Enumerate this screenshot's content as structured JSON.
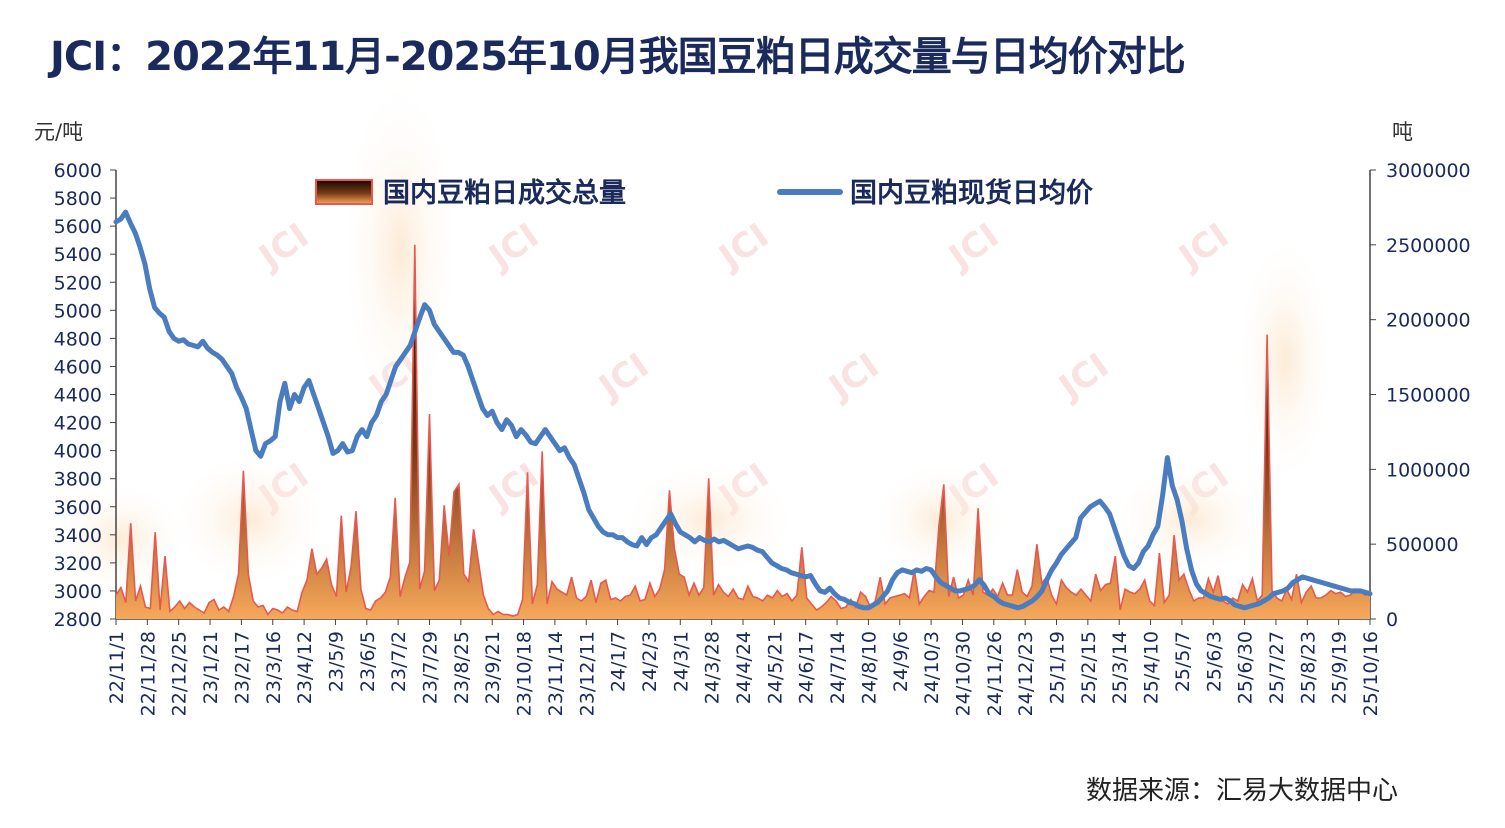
{
  "title": "JCI：2022年11月-2025年10月我国豆粕日成交量与日均价对比",
  "source": "数据来源：汇易大数据中心",
  "watermark": "JCI",
  "chart_data": {
    "type": "line+area",
    "title": "JCI：2022年11月-2025年10月我国豆粕日成交量与日均价对比",
    "y_left": {
      "unit": "元/吨",
      "range": [
        2800,
        6000
      ],
      "ticks": [
        2800,
        3000,
        3200,
        3400,
        3600,
        3800,
        4000,
        4200,
        4400,
        4600,
        4800,
        5000,
        5200,
        5400,
        5600,
        5800,
        6000
      ]
    },
    "y_right": {
      "unit": "吨",
      "range": [
        0,
        3000000
      ],
      "ticks": [
        0,
        500000,
        1000000,
        1500000,
        2000000,
        2500000,
        3000000
      ]
    },
    "x_tick_labels": [
      "22/11/1",
      "22/11/28",
      "22/12/25",
      "23/1/21",
      "23/2/17",
      "23/3/16",
      "23/4/12",
      "23/5/9",
      "23/6/5",
      "23/7/2",
      "23/7/29",
      "23/8/25",
      "23/9/21",
      "23/10/18",
      "23/11/14",
      "23/12/11",
      "24/1/7",
      "24/2/3",
      "24/3/1",
      "24/3/28",
      "24/4/24",
      "24/5/21",
      "24/6/17",
      "24/7/14",
      "24/8/10",
      "24/9/6",
      "24/10/3",
      "24/10/30",
      "24/11/26",
      "24/12/23",
      "25/1/19",
      "25/2/15",
      "25/3/14",
      "25/4/10",
      "25/5/7",
      "25/6/3",
      "25/6/30",
      "25/7/27",
      "25/8/23",
      "25/9/19",
      "25/10/16"
    ],
    "legend_position": "top",
    "series": [
      {
        "name": "国内豆粕日成交总量",
        "kind": "area",
        "axis": "right",
        "color": "#e8584f",
        "fill_top": "#1a0e08",
        "fill_bottom": "#f6a45a",
        "values": [
          160000,
          210000,
          110000,
          640000,
          120000,
          220000,
          80000,
          70000,
          580000,
          60000,
          420000,
          50000,
          80000,
          120000,
          70000,
          110000,
          80000,
          60000,
          40000,
          110000,
          130000,
          60000,
          80000,
          50000,
          150000,
          300000,
          990000,
          300000,
          120000,
          80000,
          90000,
          30000,
          70000,
          60000,
          40000,
          80000,
          60000,
          50000,
          180000,
          260000,
          470000,
          300000,
          340000,
          400000,
          230000,
          150000,
          690000,
          180000,
          350000,
          720000,
          200000,
          70000,
          60000,
          120000,
          140000,
          180000,
          280000,
          810000,
          150000,
          280000,
          380000,
          2500000,
          200000,
          320000,
          1370000,
          190000,
          260000,
          760000,
          420000,
          850000,
          900000,
          300000,
          250000,
          600000,
          380000,
          160000,
          70000,
          30000,
          50000,
          30000,
          30000,
          20000,
          30000,
          130000,
          980000,
          100000,
          230000,
          1120000,
          100000,
          250000,
          200000,
          180000,
          160000,
          280000,
          140000,
          120000,
          150000,
          260000,
          110000,
          240000,
          260000,
          130000,
          140000,
          120000,
          150000,
          160000,
          220000,
          120000,
          130000,
          240000,
          150000,
          200000,
          330000,
          860000,
          470000,
          300000,
          280000,
          160000,
          240000,
          160000,
          210000,
          940000,
          160000,
          230000,
          180000,
          150000,
          200000,
          140000,
          130000,
          220000,
          150000,
          140000,
          120000,
          160000,
          140000,
          190000,
          150000,
          170000,
          120000,
          160000,
          480000,
          140000,
          100000,
          60000,
          80000,
          110000,
          150000,
          120000,
          70000,
          80000,
          130000,
          80000,
          180000,
          150000,
          80000,
          120000,
          280000,
          100000,
          140000,
          150000,
          160000,
          170000,
          140000,
          330000,
          100000,
          150000,
          190000,
          180000,
          620000,
          900000,
          150000,
          280000,
          140000,
          160000,
          260000,
          160000,
          740000,
          180000,
          160000,
          200000,
          150000,
          240000,
          160000,
          160000,
          330000,
          180000,
          150000,
          220000,
          500000,
          240000,
          280000,
          160000,
          100000,
          260000,
          210000,
          180000,
          160000,
          200000,
          160000,
          120000,
          300000,
          190000,
          230000,
          240000,
          420000,
          60000,
          200000,
          180000,
          170000,
          200000,
          260000,
          120000,
          90000,
          440000,
          110000,
          160000,
          560000,
          260000,
          300000,
          200000,
          120000,
          140000,
          140000,
          270000,
          180000,
          290000,
          120000,
          100000,
          140000,
          120000,
          230000,
          180000,
          270000,
          120000,
          160000,
          1900000,
          190000,
          140000,
          120000,
          200000,
          130000,
          300000,
          110000,
          180000,
          220000,
          140000,
          140000,
          160000,
          190000,
          170000,
          180000,
          150000,
          160000,
          200000,
          190000,
          160000,
          180000
        ]
      },
      {
        "name": "国内豆粕现货日均价",
        "kind": "line",
        "axis": "left",
        "color": "#4a7cc0",
        "values": [
          5630,
          5650,
          5700,
          5620,
          5550,
          5450,
          5330,
          5150,
          5020,
          4980,
          4950,
          4850,
          4800,
          4780,
          4790,
          4760,
          4750,
          4740,
          4780,
          4730,
          4700,
          4680,
          4650,
          4600,
          4550,
          4450,
          4380,
          4300,
          4150,
          4000,
          3960,
          4050,
          4070,
          4100,
          4350,
          4480,
          4300,
          4400,
          4350,
          4450,
          4500,
          4400,
          4300,
          4200,
          4100,
          3980,
          4000,
          4050,
          3990,
          4000,
          4100,
          4150,
          4100,
          4200,
          4250,
          4350,
          4400,
          4500,
          4600,
          4650,
          4700,
          4750,
          4850,
          4950,
          5040,
          5000,
          4900,
          4850,
          4800,
          4750,
          4700,
          4700,
          4680,
          4600,
          4500,
          4400,
          4300,
          4250,
          4280,
          4200,
          4150,
          4220,
          4180,
          4100,
          4150,
          4110,
          4060,
          4050,
          4100,
          4150,
          4100,
          4050,
          4000,
          4020,
          3950,
          3900,
          3800,
          3700,
          3580,
          3520,
          3460,
          3420,
          3400,
          3400,
          3380,
          3380,
          3350,
          3330,
          3320,
          3380,
          3330,
          3380,
          3400,
          3450,
          3500,
          3550,
          3480,
          3420,
          3400,
          3380,
          3350,
          3380,
          3360,
          3350,
          3370,
          3350,
          3360,
          3340,
          3320,
          3300,
          3310,
          3320,
          3310,
          3290,
          3280,
          3240,
          3200,
          3180,
          3160,
          3150,
          3130,
          3120,
          3110,
          3100,
          3110,
          3050,
          3000,
          2990,
          3020,
          2980,
          2950,
          2940,
          2920,
          2910,
          2890,
          2880,
          2880,
          2900,
          2920,
          2960,
          3000,
          3080,
          3130,
          3150,
          3140,
          3130,
          3150,
          3140,
          3160,
          3150,
          3100,
          3060,
          3040,
          3020,
          3000,
          3000,
          3010,
          3020,
          3040,
          3080,
          3040,
          2980,
          2960,
          2930,
          2910,
          2900,
          2890,
          2880,
          2890,
          2910,
          2930,
          2960,
          3000,
          3080,
          3150,
          3200,
          3260,
          3300,
          3340,
          3380,
          3520,
          3560,
          3600,
          3620,
          3640,
          3600,
          3550,
          3450,
          3350,
          3250,
          3180,
          3160,
          3200,
          3280,
          3320,
          3400,
          3460,
          3680,
          3950,
          3750,
          3650,
          3500,
          3300,
          3150,
          3050,
          3000,
          2980,
          2960,
          2950,
          2940,
          2950,
          2930,
          2900,
          2890,
          2880,
          2890,
          2900,
          2910,
          2930,
          2950,
          2980,
          2990,
          3000,
          3020,
          3060,
          3080,
          3100,
          3090,
          3080,
          3070,
          3060,
          3050,
          3040,
          3030,
          3020,
          3010,
          3000,
          3000,
          3000,
          2990,
          2980
        ]
      }
    ]
  }
}
